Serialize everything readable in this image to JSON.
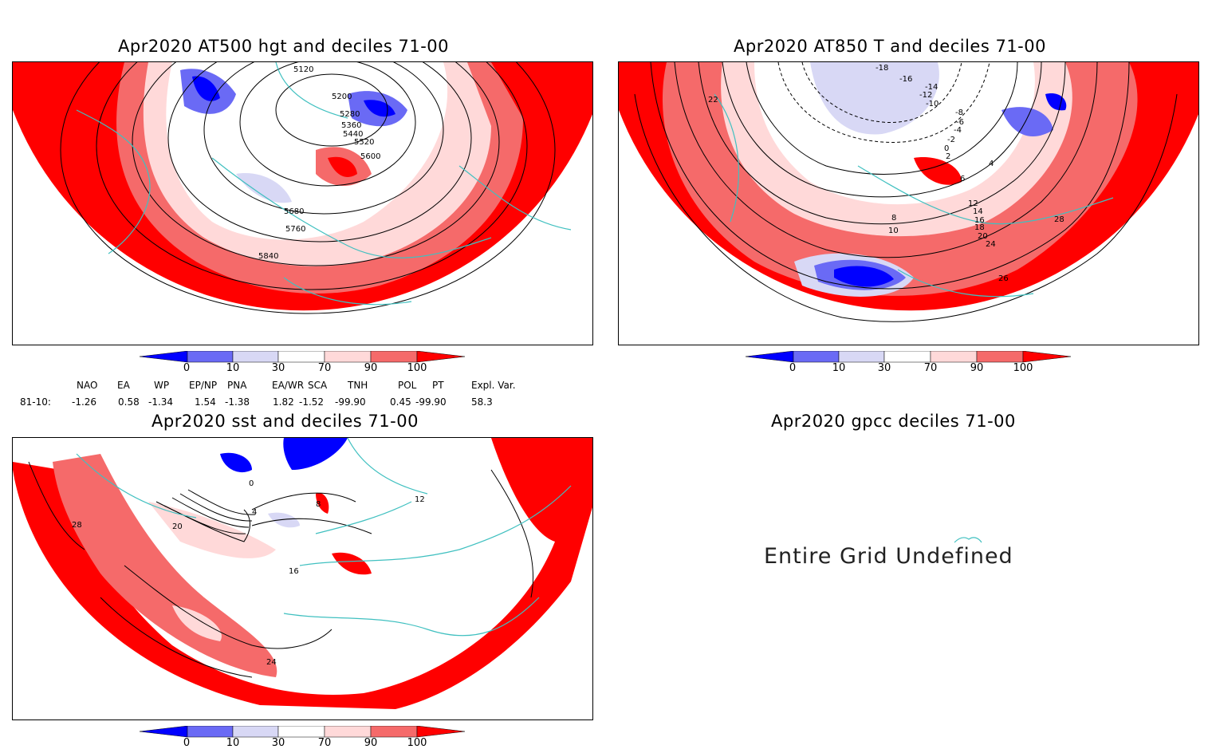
{
  "panels": {
    "z500": {
      "title": "Apr2020 AT500 hgt and deciles 71-00",
      "contour_labels": [
        "5120",
        "5200",
        "5280",
        "5360",
        "5440",
        "5520",
        "5600",
        "5680",
        "5760",
        "5840"
      ]
    },
    "t850": {
      "title": "Apr2020 AT850 T and deciles 71-00",
      "contour_labels": [
        "-18",
        "-16",
        "-14",
        "-12",
        "-10",
        "-8",
        "-6",
        "-4",
        "-2",
        "0",
        "2",
        "4",
        "6",
        "8",
        "10",
        "12",
        "14",
        "16",
        "18",
        "20",
        "22",
        "24",
        "26",
        "28"
      ]
    },
    "sst": {
      "title": "Apr2020 sst and deciles 71-00",
      "contour_labels": [
        "0",
        "4",
        "8",
        "12",
        "16",
        "20",
        "24",
        "28"
      ]
    },
    "gpcc": {
      "title": "Apr2020 gpcc deciles 71-00",
      "message": "Entire Grid Undefined"
    }
  },
  "colorbar": {
    "ticks": [
      "0",
      "10",
      "30",
      "70",
      "90",
      "100"
    ],
    "colors": [
      "#0000ff",
      "#6a6af5",
      "#d8d8f5",
      "#ffffff",
      "#ffd9d9",
      "#f56a6a",
      "#ff0000"
    ]
  },
  "indices": {
    "header": [
      "NAO",
      "EA",
      "WP",
      "EP/NP",
      "PNA",
      "EA/WR",
      "SCA",
      "TNH",
      "POL",
      "PT",
      "Expl. Var."
    ],
    "row_label": "81-10:",
    "values": [
      "-1.26",
      "0.58",
      "-1.34",
      "1.54",
      "-1.38",
      "1.82",
      "-1.52",
      "-99.90",
      "0.45",
      "-99.90",
      "58.3"
    ]
  }
}
